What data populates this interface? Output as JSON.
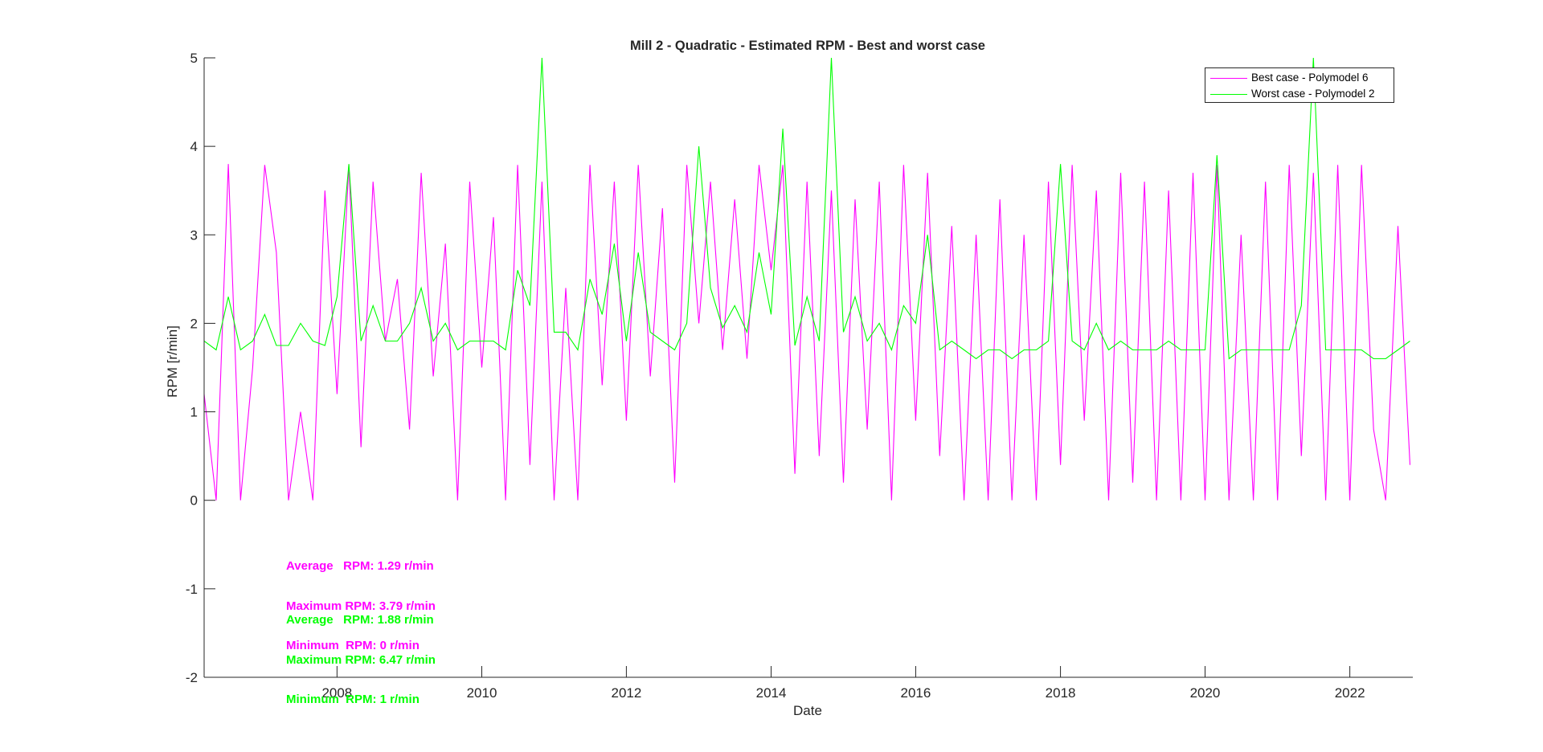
{
  "chart_data": {
    "type": "line",
    "title": "Mill 2 - Quadratic - Estimated RPM - Best and worst case",
    "xlabel": "Date",
    "ylabel": "RPM [r/min]",
    "xlim": [
      "2006-03-01",
      "2022-11-15"
    ],
    "ylim": [
      -2,
      5
    ],
    "xticks": [
      "2008",
      "2010",
      "2012",
      "2014",
      "2016",
      "2018",
      "2020",
      "2022"
    ],
    "yticks": [
      "-2",
      "-1",
      "0",
      "1",
      "2",
      "3",
      "4",
      "5"
    ],
    "grid": false,
    "legend_position": "top-right",
    "series": [
      {
        "name": "Best case - Polymodel 6",
        "color": "#ff00ff",
        "x": [
          "2006-03-01",
          "2006-05-01",
          "2006-07-01",
          "2006-09-01",
          "2006-11-01",
          "2007-01-01",
          "2007-03-01",
          "2007-05-01",
          "2007-07-01",
          "2007-09-01",
          "2007-11-01",
          "2008-01-01",
          "2008-03-01",
          "2008-05-01",
          "2008-07-01",
          "2008-09-01",
          "2008-11-01",
          "2009-01-01",
          "2009-03-01",
          "2009-05-01",
          "2009-07-01",
          "2009-09-01",
          "2009-11-01",
          "2010-01-01",
          "2010-03-01",
          "2010-05-01",
          "2010-07-01",
          "2010-09-01",
          "2010-11-01",
          "2011-01-01",
          "2011-03-01",
          "2011-05-01",
          "2011-07-01",
          "2011-09-01",
          "2011-11-01",
          "2012-01-01",
          "2012-03-01",
          "2012-05-01",
          "2012-07-01",
          "2012-09-01",
          "2012-11-01",
          "2013-01-01",
          "2013-03-01",
          "2013-05-01",
          "2013-07-01",
          "2013-09-01",
          "2013-11-01",
          "2014-01-01",
          "2014-03-01",
          "2014-05-01",
          "2014-07-01",
          "2014-09-01",
          "2014-11-01",
          "2015-01-01",
          "2015-03-01",
          "2015-05-01",
          "2015-07-01",
          "2015-09-01",
          "2015-11-01",
          "2016-01-01",
          "2016-03-01",
          "2016-05-01",
          "2016-07-01",
          "2016-09-01",
          "2016-11-01",
          "2017-01-01",
          "2017-03-01",
          "2017-05-01",
          "2017-07-01",
          "2017-09-01",
          "2017-11-01",
          "2018-01-01",
          "2018-03-01",
          "2018-05-01",
          "2018-07-01",
          "2018-09-01",
          "2018-11-01",
          "2019-01-01",
          "2019-03-01",
          "2019-05-01",
          "2019-07-01",
          "2019-09-01",
          "2019-11-01",
          "2020-01-01",
          "2020-03-01",
          "2020-05-01",
          "2020-07-01",
          "2020-09-01",
          "2020-11-01",
          "2021-01-01",
          "2021-03-01",
          "2021-05-01",
          "2021-07-01",
          "2021-09-01",
          "2021-11-01",
          "2022-01-01",
          "2022-03-01",
          "2022-05-01",
          "2022-07-01",
          "2022-09-01",
          "2022-11-01"
        ],
        "y": [
          1.2,
          0.0,
          3.8,
          0.0,
          1.5,
          3.79,
          2.8,
          0.0,
          1.0,
          0.0,
          3.5,
          1.2,
          3.79,
          0.6,
          3.6,
          1.8,
          2.5,
          0.8,
          3.7,
          1.4,
          2.9,
          0.0,
          3.6,
          1.5,
          3.2,
          0.0,
          3.79,
          0.4,
          3.6,
          0.0,
          2.4,
          0.0,
          3.79,
          1.3,
          3.6,
          0.9,
          3.79,
          1.4,
          3.3,
          0.2,
          3.79,
          2.0,
          3.6,
          1.7,
          3.4,
          1.6,
          3.79,
          2.6,
          3.79,
          0.3,
          3.6,
          0.5,
          3.5,
          0.2,
          3.4,
          0.8,
          3.6,
          0.0,
          3.79,
          0.9,
          3.7,
          0.5,
          3.1,
          0.0,
          3.0,
          0.0,
          3.4,
          0.0,
          3.0,
          0.0,
          3.6,
          0.4,
          3.79,
          0.9,
          3.5,
          0.0,
          3.7,
          0.2,
          3.6,
          0.0,
          3.5,
          0.0,
          3.7,
          0.0,
          3.79,
          0.0,
          3.0,
          0.0,
          3.6,
          0.0,
          3.79,
          0.5,
          3.7,
          0.0,
          3.79,
          0.0,
          3.79,
          0.8,
          0.0,
          3.1,
          0.4
        ],
        "average": "1.29 r/min",
        "maximum": "3.79 r/min",
        "minimum": "0 r/min"
      },
      {
        "name": "Worst case - Polymodel 2",
        "color": "#00ff00",
        "x": [
          "2006-03-01",
          "2006-05-01",
          "2006-07-01",
          "2006-09-01",
          "2006-11-01",
          "2007-01-01",
          "2007-03-01",
          "2007-05-01",
          "2007-07-01",
          "2007-09-01",
          "2007-11-01",
          "2008-01-01",
          "2008-03-01",
          "2008-05-01",
          "2008-07-01",
          "2008-09-01",
          "2008-11-01",
          "2009-01-01",
          "2009-03-01",
          "2009-05-01",
          "2009-07-01",
          "2009-09-01",
          "2009-11-01",
          "2010-01-01",
          "2010-03-01",
          "2010-05-01",
          "2010-07-01",
          "2010-09-01",
          "2010-11-01",
          "2011-01-01",
          "2011-03-01",
          "2011-05-01",
          "2011-07-01",
          "2011-09-01",
          "2011-11-01",
          "2012-01-01",
          "2012-03-01",
          "2012-05-01",
          "2012-07-01",
          "2012-09-01",
          "2012-11-01",
          "2013-01-01",
          "2013-03-01",
          "2013-05-01",
          "2013-07-01",
          "2013-09-01",
          "2013-11-01",
          "2014-01-01",
          "2014-03-01",
          "2014-05-01",
          "2014-07-01",
          "2014-09-01",
          "2014-11-01",
          "2015-01-01",
          "2015-03-01",
          "2015-05-01",
          "2015-07-01",
          "2015-09-01",
          "2015-11-01",
          "2016-01-01",
          "2016-03-01",
          "2016-05-01",
          "2016-07-01",
          "2016-09-01",
          "2016-11-01",
          "2017-01-01",
          "2017-03-01",
          "2017-05-01",
          "2017-07-01",
          "2017-09-01",
          "2017-11-01",
          "2018-01-01",
          "2018-03-01",
          "2018-05-01",
          "2018-07-01",
          "2018-09-01",
          "2018-11-01",
          "2019-01-01",
          "2019-03-01",
          "2019-05-01",
          "2019-07-01",
          "2019-09-01",
          "2019-11-01",
          "2020-01-01",
          "2020-03-01",
          "2020-05-01",
          "2020-07-01",
          "2020-09-01",
          "2020-11-01",
          "2021-01-01",
          "2021-03-01",
          "2021-05-01",
          "2021-07-01",
          "2021-09-01",
          "2021-11-01",
          "2022-01-01",
          "2022-03-01",
          "2022-05-01",
          "2022-07-01",
          "2022-09-01",
          "2022-11-01"
        ],
        "y": [
          1.8,
          1.7,
          2.3,
          1.7,
          1.8,
          2.1,
          1.75,
          1.75,
          2.0,
          1.8,
          1.75,
          2.3,
          3.8,
          1.8,
          2.2,
          1.8,
          1.8,
          2.0,
          2.4,
          1.8,
          2.0,
          1.7,
          1.8,
          1.8,
          1.8,
          1.7,
          2.6,
          2.2,
          5.0,
          1.9,
          1.9,
          1.7,
          2.5,
          2.1,
          2.9,
          1.8,
          2.8,
          1.9,
          1.8,
          1.7,
          2.0,
          4.0,
          2.4,
          1.95,
          2.2,
          1.9,
          2.8,
          2.1,
          4.2,
          1.75,
          2.3,
          1.8,
          5.0,
          1.9,
          2.3,
          1.8,
          2.0,
          1.7,
          2.2,
          2.0,
          3.0,
          1.7,
          1.8,
          1.7,
          1.6,
          1.7,
          1.7,
          1.6,
          1.7,
          1.7,
          1.8,
          3.8,
          1.8,
          1.7,
          2.0,
          1.7,
          1.8,
          1.7,
          1.7,
          1.7,
          1.8,
          1.7,
          1.7,
          1.7,
          3.9,
          1.6,
          1.7,
          1.7,
          1.7,
          1.7,
          1.7,
          2.2,
          5.0,
          1.7,
          1.7,
          1.7,
          1.7,
          1.6,
          1.6,
          1.7,
          1.8
        ],
        "average": "1.88 r/min",
        "maximum": "6.47 r/min",
        "minimum": "1 r/min"
      }
    ]
  },
  "stats": {
    "average_label": "Average   RPM:",
    "maximum_label": "Maximum RPM:",
    "minimum_label": "Minimum  RPM:"
  }
}
